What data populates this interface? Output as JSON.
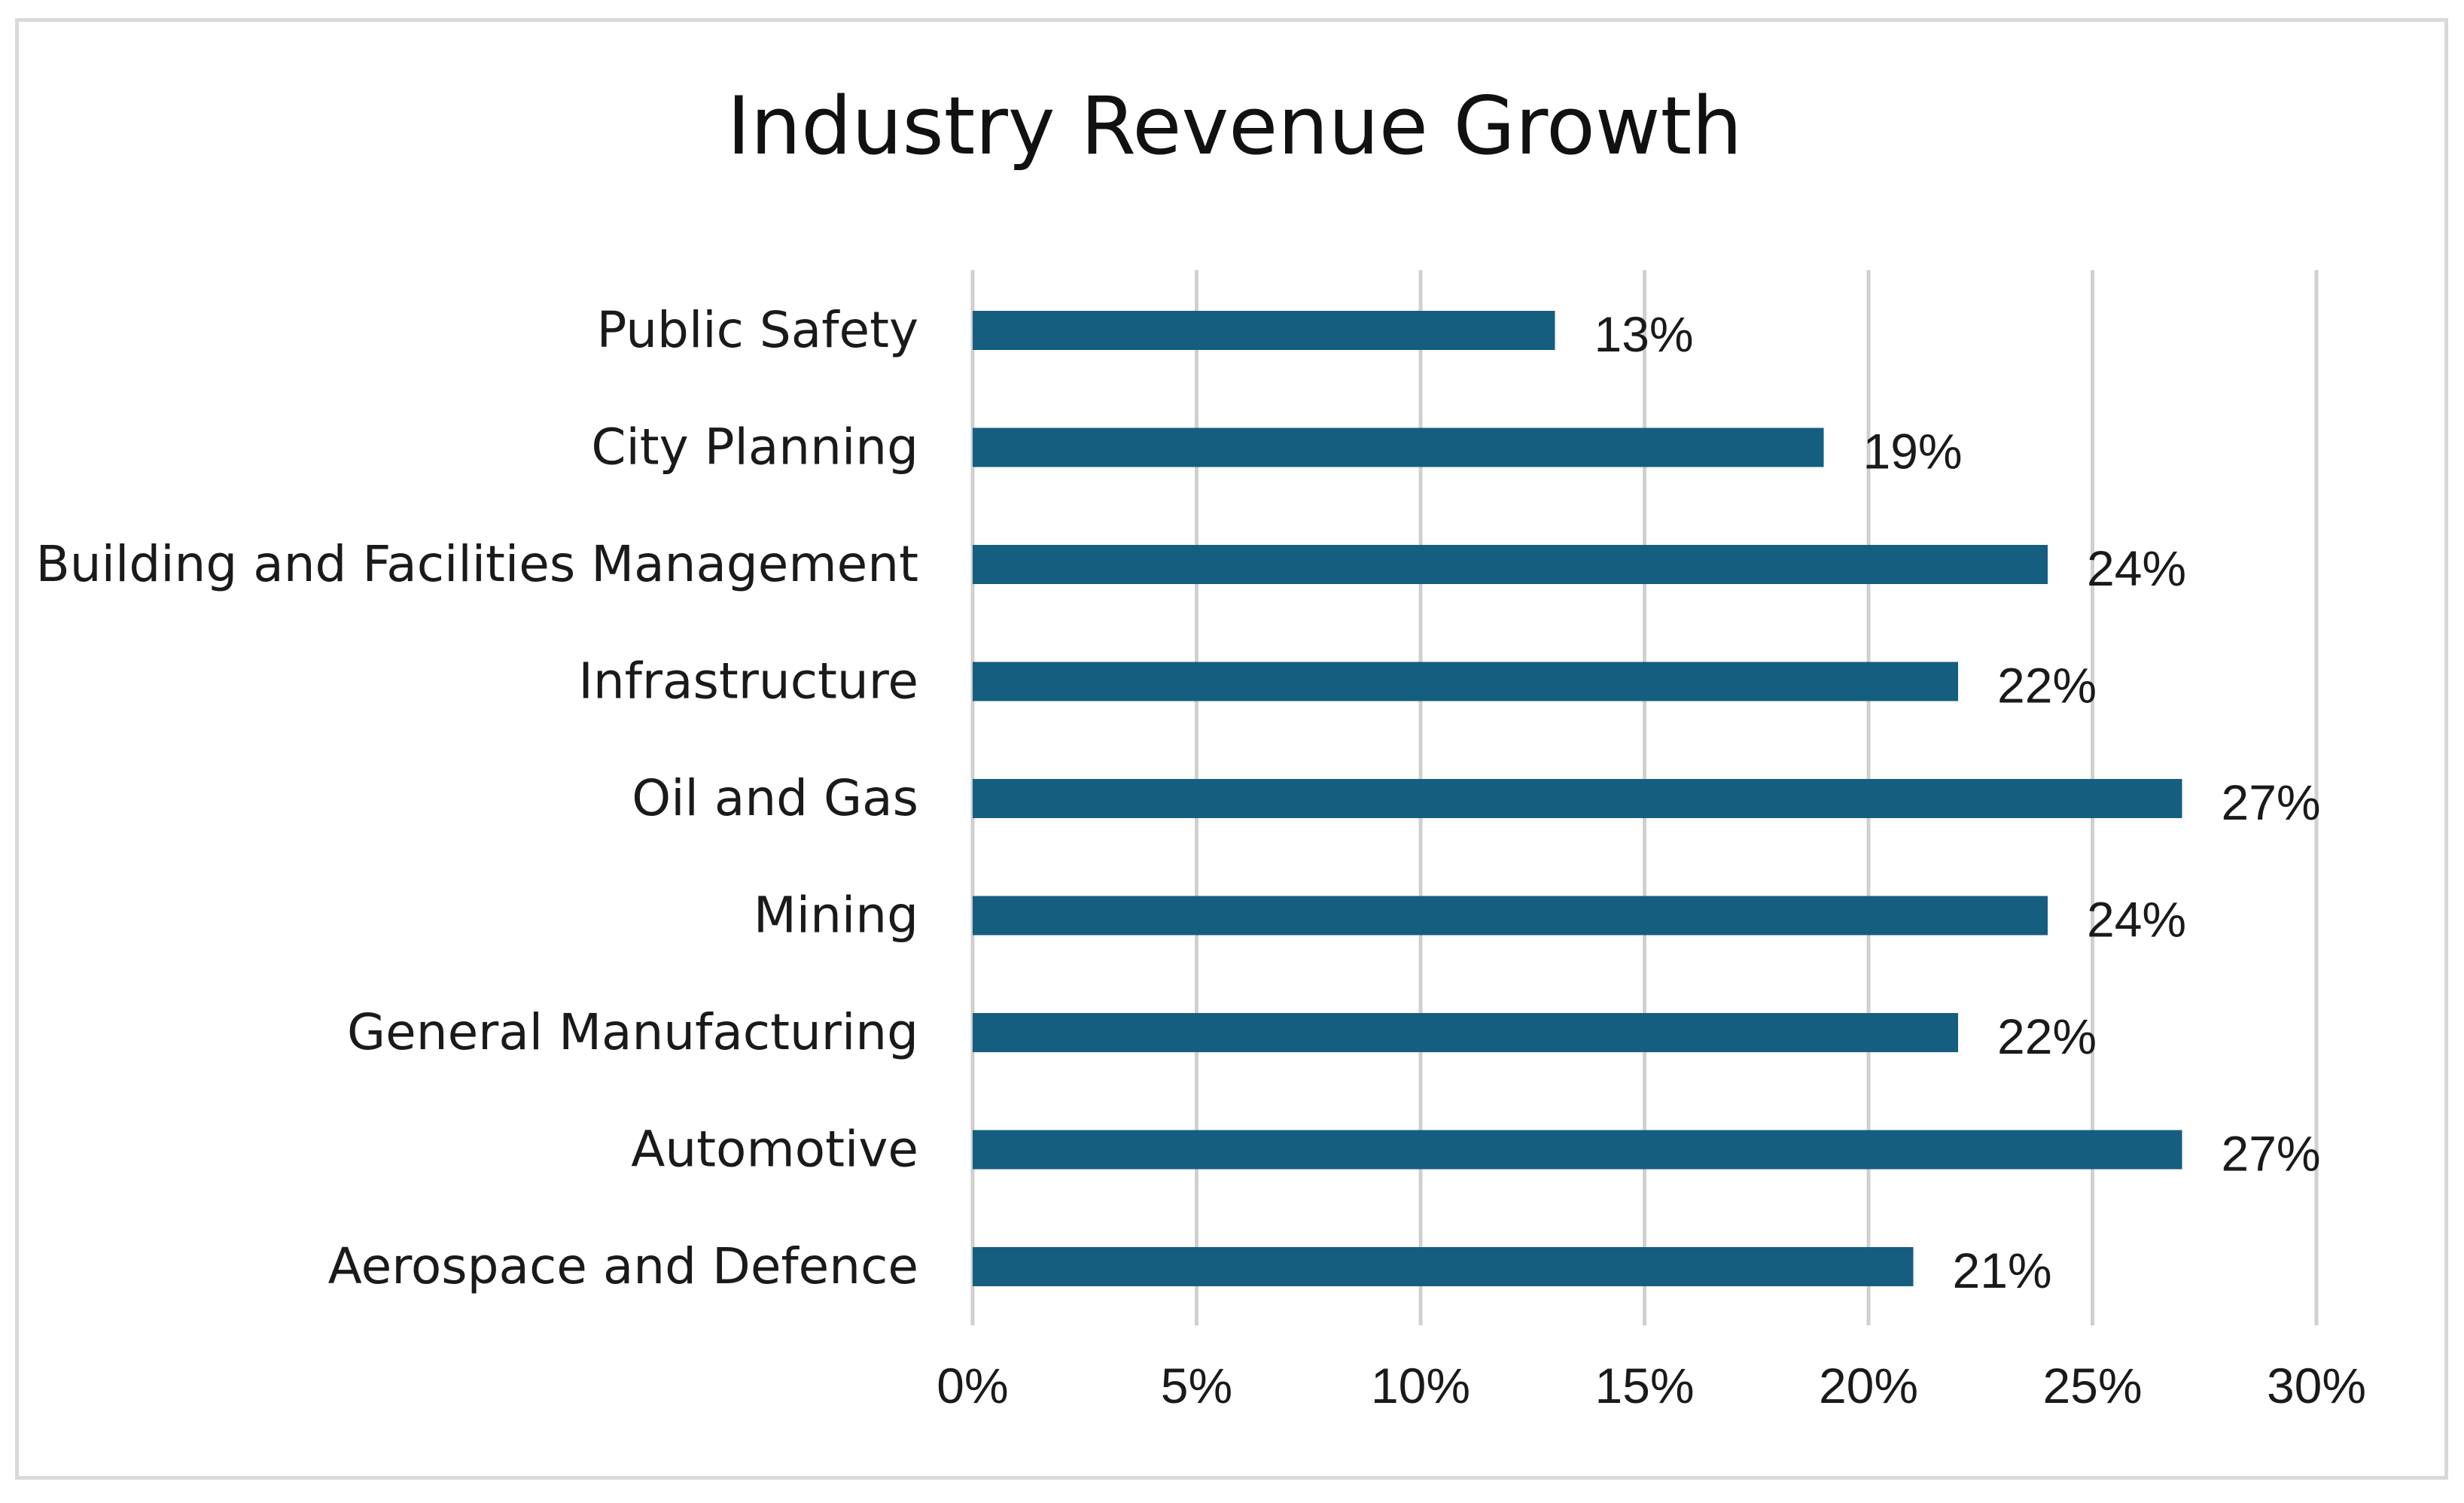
{
  "chart_data": {
    "type": "bar",
    "orientation": "horizontal",
    "title": "Industry Revenue Growth",
    "categories": [
      "Public Safety",
      "City Planning",
      "Building and Facilities Management",
      "Infrastructure",
      "Oil and Gas",
      "Mining",
      "General Manufacturing",
      "Automotive",
      "Aerospace and Defence"
    ],
    "values": [
      13,
      19,
      24,
      22,
      27,
      24,
      22,
      27,
      21
    ],
    "data_labels": [
      "13%",
      "19%",
      "24%",
      "22%",
      "27%",
      "24%",
      "22%",
      "27%",
      "21%"
    ],
    "xlim": [
      0,
      30
    ],
    "x_ticks": [
      0,
      5,
      10,
      15,
      20,
      25,
      30
    ],
    "x_tick_labels": [
      "0%",
      "5%",
      "10%",
      "15%",
      "20%",
      "25%",
      "30%"
    ],
    "xlabel": "",
    "ylabel": "",
    "grid": true,
    "legend": "none",
    "bar_color": "#155e80",
    "gridline_color": "#d0d0d0",
    "border_color": "#d9d9d9"
  }
}
